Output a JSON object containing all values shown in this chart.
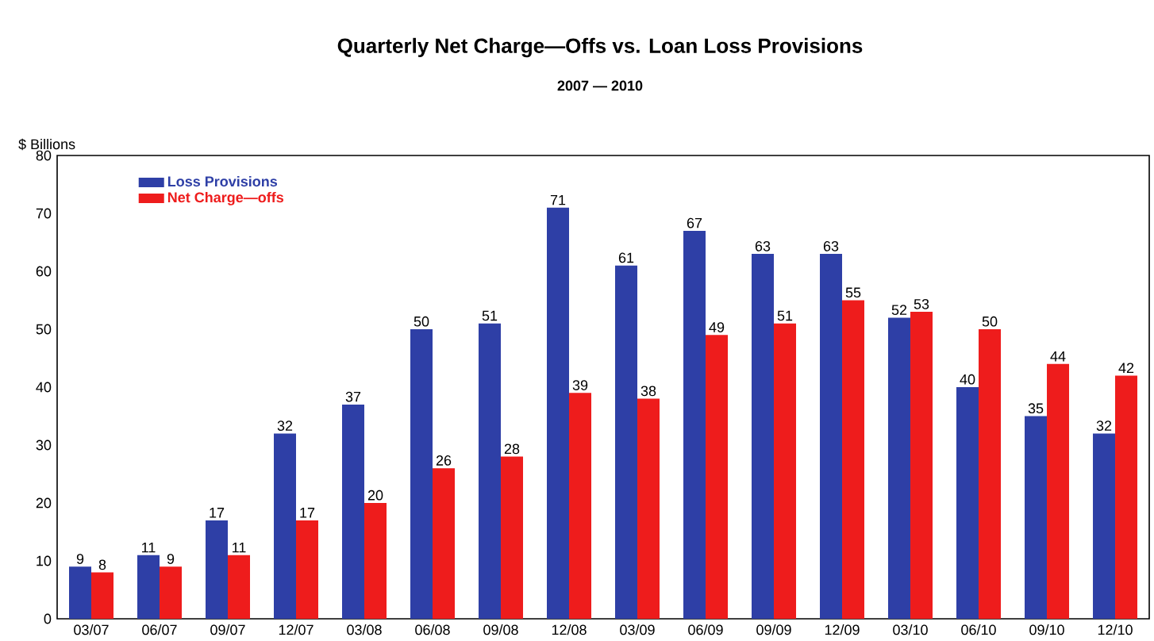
{
  "chart_data": {
    "type": "bar",
    "title": "Quarterly Net Charge—Offs vs. Loan Loss Provisions",
    "subtitle": "2007 — 2010",
    "ylabel": "$ Billions",
    "categories": [
      "03/07",
      "06/07",
      "09/07",
      "12/07",
      "03/08",
      "06/08",
      "09/08",
      "12/08",
      "03/09",
      "06/09",
      "09/09",
      "12/09",
      "03/10",
      "06/10",
      "09/10",
      "12/10"
    ],
    "series": [
      {
        "name": "Loss Provisions",
        "color": "#2e3fa6",
        "values": [
          9,
          11,
          17,
          32,
          37,
          50,
          51,
          71,
          61,
          67,
          63,
          63,
          52,
          40,
          35,
          32
        ]
      },
      {
        "name": "Net Charge—offs",
        "color": "#ee1c1c",
        "values": [
          8,
          9,
          11,
          17,
          20,
          26,
          28,
          39,
          38,
          49,
          51,
          55,
          53,
          50,
          44,
          42
        ]
      }
    ],
    "ylim": [
      0,
      80
    ],
    "yticks": [
      0,
      10,
      20,
      30,
      40,
      50,
      60,
      70,
      80
    ],
    "data_labels": true,
    "legend": "top left",
    "grid": false
  }
}
